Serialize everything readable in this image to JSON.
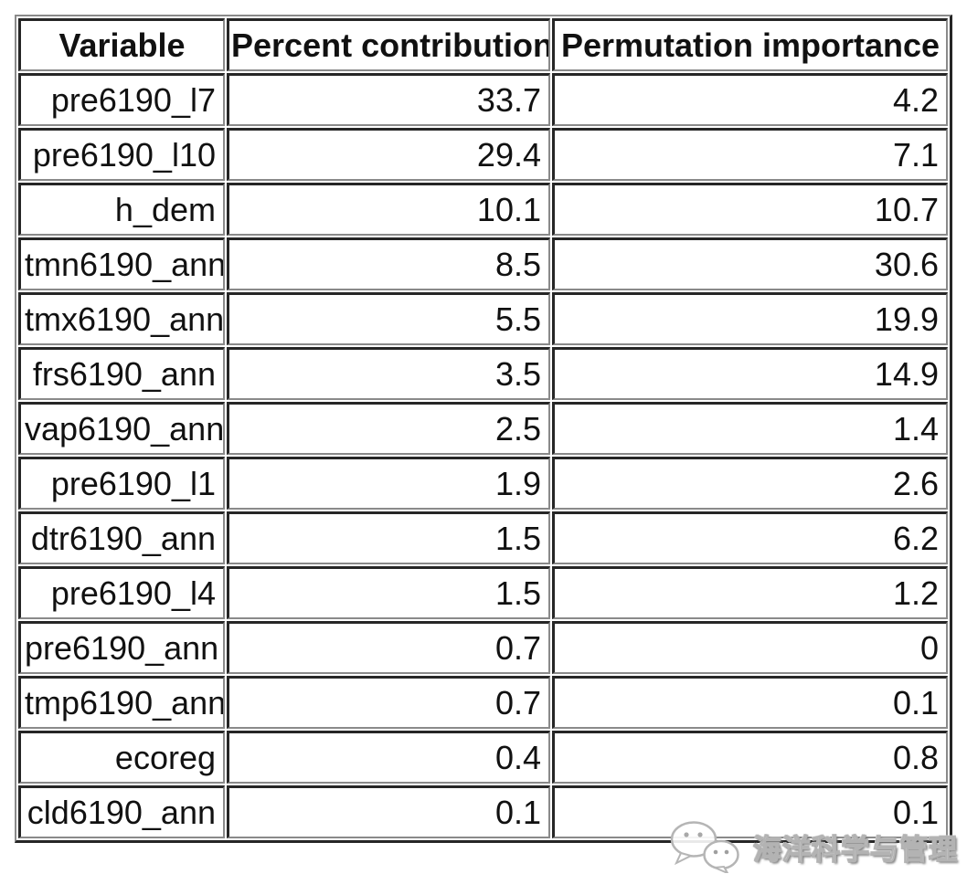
{
  "table": {
    "headers": [
      "Variable",
      "Percent contribution",
      "Permutation importance"
    ],
    "rows": [
      [
        "pre6190_l7",
        "33.7",
        "4.2"
      ],
      [
        "pre6190_l10",
        "29.4",
        "7.1"
      ],
      [
        "h_dem",
        "10.1",
        "10.7"
      ],
      [
        "tmn6190_ann",
        "8.5",
        "30.6"
      ],
      [
        "tmx6190_ann",
        "5.5",
        "19.9"
      ],
      [
        "frs6190_ann",
        "3.5",
        "14.9"
      ],
      [
        "vap6190_ann",
        "2.5",
        "1.4"
      ],
      [
        "pre6190_l1",
        "1.9",
        "2.6"
      ],
      [
        "dtr6190_ann",
        "1.5",
        "6.2"
      ],
      [
        "pre6190_l4",
        "1.5",
        "1.2"
      ],
      [
        "pre6190_ann",
        "0.7",
        "0"
      ],
      [
        "tmp6190_ann",
        "0.7",
        "0.1"
      ],
      [
        "ecoreg",
        "0.4",
        "0.8"
      ],
      [
        "cld6190_ann",
        "0.1",
        "0.1"
      ]
    ]
  },
  "watermark": {
    "icon": "wechat-icon",
    "text": "海洋科学与管理"
  },
  "colors": {
    "border_dark": "#262626",
    "border_light": "#8a8a8a",
    "text": "#111111",
    "background": "#ffffff"
  },
  "chart_data": {
    "type": "table",
    "title": "",
    "columns": [
      "Variable",
      "Percent contribution",
      "Permutation importance"
    ],
    "rows": [
      [
        "pre6190_l7",
        33.7,
        4.2
      ],
      [
        "pre6190_l10",
        29.4,
        7.1
      ],
      [
        "h_dem",
        10.1,
        10.7
      ],
      [
        "tmn6190_ann",
        8.5,
        30.6
      ],
      [
        "tmx6190_ann",
        5.5,
        19.9
      ],
      [
        "frs6190_ann",
        3.5,
        14.9
      ],
      [
        "vap6190_ann",
        2.5,
        1.4
      ],
      [
        "pre6190_l1",
        1.9,
        2.6
      ],
      [
        "dtr6190_ann",
        1.5,
        6.2
      ],
      [
        "pre6190_l4",
        1.5,
        1.2
      ],
      [
        "pre6190_ann",
        0.7,
        0
      ],
      [
        "tmp6190_ann",
        0.7,
        0.1
      ],
      [
        "ecoreg",
        0.4,
        0.8
      ],
      [
        "cld6190_ann",
        0.1,
        0.1
      ]
    ]
  }
}
